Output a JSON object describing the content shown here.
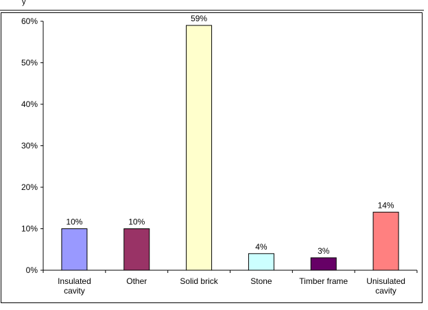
{
  "header_fragment": "y",
  "chart_data": {
    "type": "bar",
    "categories": [
      [
        "Insulated",
        "cavity"
      ],
      [
        "Other"
      ],
      [
        "Solid brick"
      ],
      [
        "Stone"
      ],
      [
        "Timber frame"
      ],
      [
        "Unisulated",
        "cavity"
      ]
    ],
    "values": [
      10,
      10,
      59,
      4,
      3,
      14
    ],
    "value_labels": [
      "10%",
      "10%",
      "59%",
      "4%",
      "3%",
      "14%"
    ],
    "colors": [
      "#9999FF",
      "#993366",
      "#FFFFCC",
      "#CCFFFF",
      "#660066",
      "#FF8080"
    ],
    "y_ticks": [
      "0%",
      "10%",
      "20%",
      "30%",
      "40%",
      "50%",
      "60%"
    ],
    "ylim": [
      0,
      60
    ],
    "title": "",
    "xlabel": "",
    "ylabel": "",
    "grid": false,
    "legend": "none"
  }
}
